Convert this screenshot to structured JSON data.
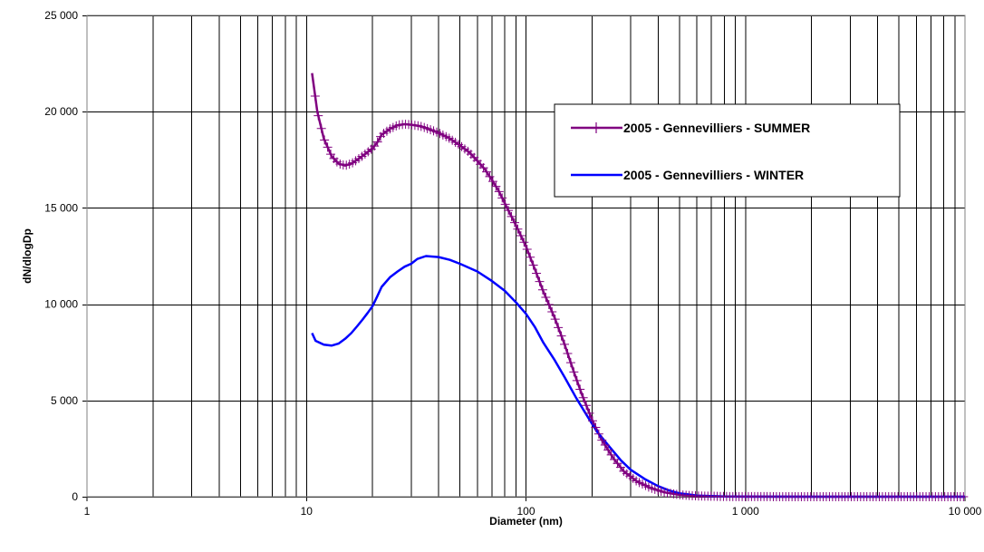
{
  "chart_data": {
    "type": "line",
    "xscale": "log",
    "xlim": [
      1,
      10000
    ],
    "ylim": [
      0,
      25000
    ],
    "xlabel": "Diameter (nm)",
    "ylabel": "dN/dlogDp",
    "x_ticks": [
      {
        "value": 1,
        "label": "1"
      },
      {
        "value": 10,
        "label": "10"
      },
      {
        "value": 100,
        "label": "100"
      },
      {
        "value": 1000,
        "label": "1 000"
      },
      {
        "value": 10000,
        "label": "10 000"
      }
    ],
    "y_ticks": [
      {
        "value": 0,
        "label": "0"
      },
      {
        "value": 5000,
        "label": "5 000"
      },
      {
        "value": 10000,
        "label": "10 000"
      },
      {
        "value": 15000,
        "label": "15 000"
      },
      {
        "value": 20000,
        "label": "20 000"
      },
      {
        "value": 25000,
        "label": "25 000"
      }
    ],
    "grid": true,
    "legend_position": "top-right",
    "series": [
      {
        "name": "2005 - Gennevilliers - SUMMER",
        "color": "#800080",
        "marker": "plus",
        "points": [
          [
            10.6,
            22000
          ],
          [
            11.2,
            20000
          ],
          [
            12,
            18600
          ],
          [
            13,
            17700
          ],
          [
            14,
            17300
          ],
          [
            15,
            17200
          ],
          [
            16,
            17300
          ],
          [
            17,
            17500
          ],
          [
            18,
            17700
          ],
          [
            19,
            17900
          ],
          [
            20,
            18100
          ],
          [
            21,
            18400
          ],
          [
            22,
            18800
          ],
          [
            24,
            19100
          ],
          [
            26,
            19300
          ],
          [
            28,
            19350
          ],
          [
            30,
            19320
          ],
          [
            33,
            19250
          ],
          [
            36,
            19100
          ],
          [
            40,
            18900
          ],
          [
            45,
            18600
          ],
          [
            50,
            18250
          ],
          [
            55,
            17900
          ],
          [
            60,
            17450
          ],
          [
            65,
            17000
          ],
          [
            70,
            16450
          ],
          [
            75,
            15900
          ],
          [
            80,
            15250
          ],
          [
            90,
            14100
          ],
          [
            100,
            13000
          ],
          [
            110,
            11800
          ],
          [
            120,
            10650
          ],
          [
            135,
            9300
          ],
          [
            150,
            7900
          ],
          [
            165,
            6500
          ],
          [
            180,
            5300
          ],
          [
            200,
            4000
          ],
          [
            220,
            3000
          ],
          [
            250,
            2000
          ],
          [
            280,
            1300
          ],
          [
            320,
            800
          ],
          [
            370,
            450
          ],
          [
            430,
            220
          ],
          [
            500,
            100
          ],
          [
            600,
            40
          ],
          [
            800,
            10
          ],
          [
            1000,
            5
          ],
          [
            2000,
            0
          ],
          [
            5000,
            0
          ],
          [
            10000,
            0
          ]
        ]
      },
      {
        "name": "2005 - Gennevilliers - WINTER",
        "color": "#0000ff",
        "marker": "none",
        "points": [
          [
            10.6,
            8500
          ],
          [
            11,
            8100
          ],
          [
            12,
            7900
          ],
          [
            13,
            7850
          ],
          [
            14,
            7950
          ],
          [
            15,
            8200
          ],
          [
            16,
            8500
          ],
          [
            17,
            8850
          ],
          [
            18,
            9200
          ],
          [
            19,
            9550
          ],
          [
            20,
            9900
          ],
          [
            21,
            10400
          ],
          [
            22,
            10900
          ],
          [
            24,
            11400
          ],
          [
            26,
            11700
          ],
          [
            28,
            11950
          ],
          [
            30,
            12100
          ],
          [
            32,
            12350
          ],
          [
            35,
            12500
          ],
          [
            40,
            12450
          ],
          [
            45,
            12300
          ],
          [
            50,
            12100
          ],
          [
            60,
            11700
          ],
          [
            70,
            11200
          ],
          [
            80,
            10700
          ],
          [
            90,
            10100
          ],
          [
            100,
            9500
          ],
          [
            110,
            8800
          ],
          [
            120,
            8000
          ],
          [
            135,
            7100
          ],
          [
            150,
            6200
          ],
          [
            170,
            5100
          ],
          [
            190,
            4200
          ],
          [
            210,
            3400
          ],
          [
            240,
            2600
          ],
          [
            270,
            1900
          ],
          [
            300,
            1400
          ],
          [
            350,
            900
          ],
          [
            400,
            550
          ],
          [
            450,
            320
          ],
          [
            500,
            180
          ],
          [
            600,
            60
          ],
          [
            800,
            15
          ],
          [
            1000,
            5
          ],
          [
            2000,
            0
          ],
          [
            5000,
            0
          ],
          [
            10000,
            0
          ]
        ]
      }
    ]
  }
}
